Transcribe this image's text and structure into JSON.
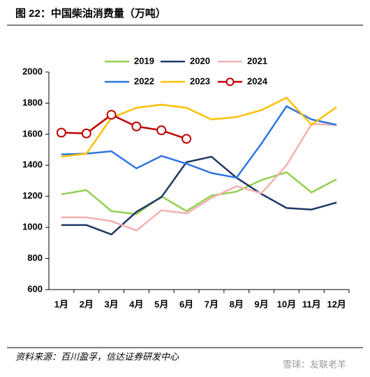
{
  "title": "图 22：中国柴油消费量（万吨）",
  "chart_data": {
    "type": "line",
    "categories": [
      "1月",
      "2月",
      "3月",
      "4月",
      "5月",
      "6月",
      "7月",
      "8月",
      "9月",
      "10月",
      "11月",
      "12月"
    ],
    "ylim": [
      600,
      2000
    ],
    "yticks": [
      600,
      800,
      1000,
      1200,
      1400,
      1600,
      1800,
      2000
    ],
    "grid": false,
    "series": [
      {
        "name": "2019",
        "color": "#92d050",
        "values": [
          1213,
          1240,
          1105,
          1085,
          1200,
          1105,
          1205,
          1230,
          1305,
          1355,
          1225,
          1310
        ]
      },
      {
        "name": "2020",
        "color": "#1f3864",
        "values": [
          1015,
          1015,
          955,
          1100,
          1195,
          1420,
          1455,
          1320,
          1215,
          1125,
          1115,
          1160
        ]
      },
      {
        "name": "2021",
        "color": "#f4b0b0",
        "values": [
          1065,
          1065,
          1040,
          980,
          1110,
          1090,
          1190,
          1265,
          1220,
          1400,
          1665,
          1660
        ]
      },
      {
        "name": "2022",
        "color": "#2f75e0",
        "values": [
          1470,
          1475,
          1490,
          1380,
          1460,
          1410,
          1350,
          1320,
          1540,
          1780,
          1695,
          1660
        ]
      },
      {
        "name": "2023",
        "color": "#ffc000",
        "values": [
          1455,
          1475,
          1705,
          1770,
          1790,
          1770,
          1695,
          1710,
          1755,
          1835,
          1660,
          1775
        ]
      },
      {
        "name": "2024",
        "color": "#c00000",
        "markers": true,
        "values": [
          1610,
          1605,
          1725,
          1650,
          1625,
          1570,
          null,
          null,
          null,
          null,
          null,
          null
        ]
      }
    ]
  },
  "source": "资料来源：百川盈孚，信达证券研发中心",
  "watermark": "雪球：友联老羊"
}
